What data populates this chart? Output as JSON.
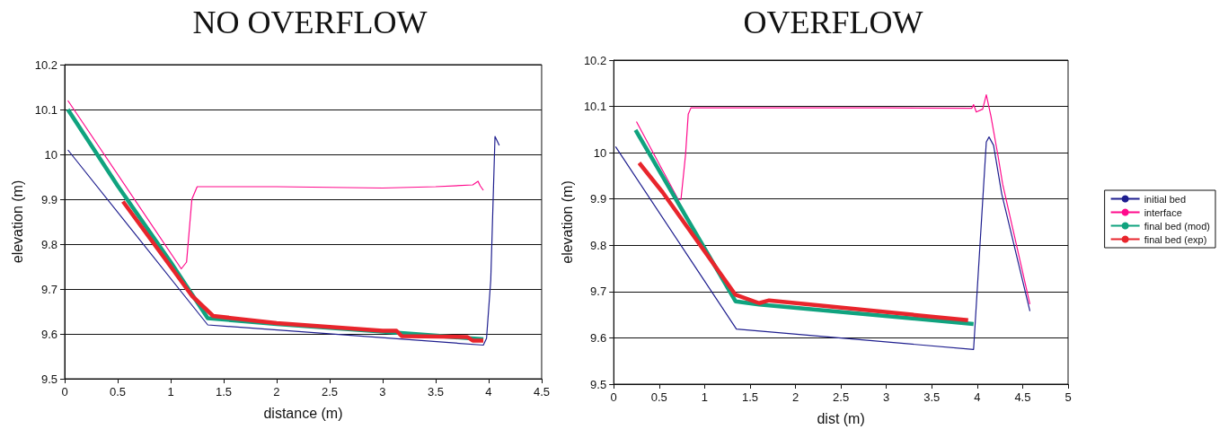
{
  "chart_data": [
    {
      "type": "line",
      "title": "NO OVERFLOW",
      "xlabel": "distance (m)",
      "ylabel": "elevation (m)",
      "xlim": [
        0,
        4.5
      ],
      "xticks": [
        0,
        0.5,
        1,
        1.5,
        2,
        2.5,
        3,
        3.5,
        4,
        4.5
      ],
      "ylim": [
        9.5,
        10.2
      ],
      "yticks": [
        9.5,
        9.6,
        9.7,
        9.8,
        9.9,
        10,
        10.1,
        10.2
      ],
      "grid": "y",
      "legend": false,
      "marker": "none",
      "line_style": "solid",
      "series": [
        {
          "color": "#1f1f8f",
          "x": [
            0.03,
            1.35,
            3.95,
            3.98,
            4.02,
            4.06,
            4.1
          ],
          "values": [
            10.01,
            9.62,
            9.575,
            9.59,
            9.72,
            10.04,
            10.02
          ]
        },
        {
          "color": "#ff0a8c",
          "x": [
            0.03,
            1.1,
            1.15,
            1.2,
            1.25,
            2,
            3,
            3.5,
            3.85,
            3.9,
            3.92,
            3.95
          ],
          "values": [
            10.12,
            9.745,
            9.76,
            9.9,
            9.928,
            9.928,
            9.925,
            9.928,
            9.932,
            9.94,
            9.93,
            9.92
          ]
        },
        {
          "color": "#10a37f",
          "x": [
            0.03,
            0.5,
            1,
            1.35,
            2,
            3,
            3.95
          ],
          "values": [
            10.1,
            9.93,
            9.76,
            9.635,
            9.622,
            9.605,
            9.588
          ]
        },
        {
          "color": "#e8252c",
          "x": [
            0.55,
            1,
            1.2,
            1.4,
            2,
            3,
            3.13,
            3.18,
            3.8,
            3.85,
            3.95
          ],
          "values": [
            9.895,
            9.75,
            9.685,
            9.64,
            9.624,
            9.607,
            9.607,
            9.595,
            9.593,
            9.585,
            9.585
          ]
        }
      ]
    },
    {
      "type": "line",
      "title": "OVERFLOW",
      "xlabel": "dist (m)",
      "ylabel": "elevation (m)",
      "xlim": [
        0,
        5
      ],
      "xticks": [
        0,
        0.5,
        1,
        1.5,
        2,
        2.5,
        3,
        3.5,
        4,
        4.5,
        5
      ],
      "ylim": [
        9.5,
        10.2
      ],
      "yticks": [
        9.5,
        9.6,
        9.7,
        9.8,
        9.9,
        10,
        10.1,
        10.2
      ],
      "grid": "y",
      "legend": "right",
      "marker": "none",
      "line_style": "solid",
      "series": [
        {
          "name": "initial bed",
          "color": "#1f1f8f",
          "x": [
            0.02,
            1.35,
            3.96,
            4.1,
            4.13,
            4.18,
            4.27,
            4.58
          ],
          "values": [
            10.013,
            9.619,
            9.575,
            10.023,
            10.034,
            10.016,
            9.911,
            9.658
          ]
        },
        {
          "name": "interface",
          "color": "#ff0a8c",
          "x": [
            0.25,
            0.71,
            0.74,
            0.79,
            0.82,
            0.85,
            2,
            3,
            3.94,
            3.96,
            3.99,
            4.06,
            4.1,
            4.15,
            4.23,
            4.28,
            4.58
          ],
          "values": [
            10.067,
            9.899,
            9.899,
            9.995,
            10.083,
            10.097,
            10.097,
            10.097,
            10.096,
            10.104,
            10.088,
            10.094,
            10.125,
            10.08,
            9.992,
            9.932,
            9.673
          ]
        },
        {
          "name": "final bed (mod)",
          "color": "#10a37f",
          "x": [
            0.24,
            1.34,
            1.6,
            3.96
          ],
          "values": [
            10.049,
            9.679,
            9.672,
            9.63
          ]
        },
        {
          "name": "final bed (exp)",
          "color": "#e8252c",
          "x": [
            0.28,
            0.54,
            1.34,
            1.6,
            1.71,
            3.9
          ],
          "values": [
            9.978,
            9.914,
            9.693,
            9.675,
            9.681,
            9.638
          ]
        }
      ]
    }
  ]
}
